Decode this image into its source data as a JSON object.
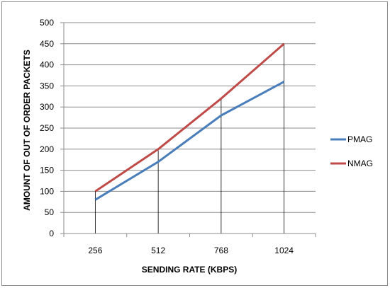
{
  "chart_data": {
    "type": "line",
    "categories": [
      "256",
      "512",
      "768",
      "1024"
    ],
    "series": [
      {
        "name": "PMAG",
        "color": "#4a7ebb",
        "values": [
          80,
          170,
          280,
          360
        ]
      },
      {
        "name": "NMAG",
        "color": "#be4b48",
        "values": [
          100,
          200,
          320,
          450
        ]
      }
    ],
    "xlabel": "SENDING RATE (KBPS)",
    "ylabel": "AMOUNT OF OUT OF ORDER PACKETS",
    "ylim": [
      0,
      500
    ],
    "yticks": [
      0,
      50,
      100,
      150,
      200,
      250,
      300,
      350,
      400,
      450,
      500
    ],
    "grid": "horizontal",
    "legend_position": "right"
  }
}
